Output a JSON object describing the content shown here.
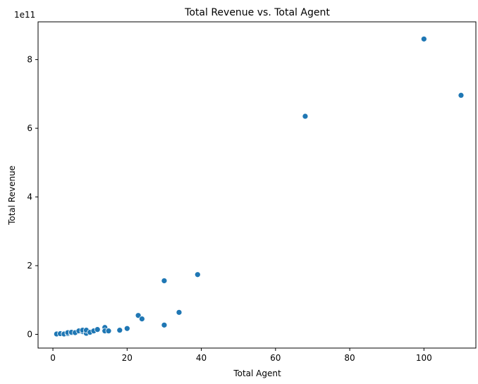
{
  "chart_data": {
    "type": "scatter",
    "title": "Total Revenue vs. Total Agent",
    "xlabel": "Total Agent",
    "ylabel": "Total Revenue",
    "y_offset_label": "1e11",
    "xlim": [
      -4,
      114
    ],
    "ylim": [
      -0.4,
      9.1
    ],
    "y_scale_multiplier": 100000000000.0,
    "x_ticks": [
      0,
      20,
      40,
      60,
      80,
      100
    ],
    "y_ticks": [
      0,
      2,
      4,
      6,
      8
    ],
    "grid": false,
    "color": "#1f77b4",
    "points": [
      {
        "x": 1,
        "y": 0.01
      },
      {
        "x": 2,
        "y": 0.02
      },
      {
        "x": 3,
        "y": 0.02
      },
      {
        "x": 3,
        "y": 0.01
      },
      {
        "x": 4,
        "y": 0.02
      },
      {
        "x": 4,
        "y": 0.05
      },
      {
        "x": 5,
        "y": 0.04
      },
      {
        "x": 5,
        "y": 0.06
      },
      {
        "x": 6,
        "y": 0.05
      },
      {
        "x": 7,
        "y": 0.1
      },
      {
        "x": 8,
        "y": 0.08
      },
      {
        "x": 8,
        "y": 0.12
      },
      {
        "x": 9,
        "y": 0.05
      },
      {
        "x": 9,
        "y": 0.03
      },
      {
        "x": 9,
        "y": 0.12
      },
      {
        "x": 10,
        "y": 0.06
      },
      {
        "x": 11,
        "y": 0.1
      },
      {
        "x": 12,
        "y": 0.14
      },
      {
        "x": 14,
        "y": 0.2
      },
      {
        "x": 14,
        "y": 0.1
      },
      {
        "x": 15,
        "y": 0.1
      },
      {
        "x": 18,
        "y": 0.12
      },
      {
        "x": 20,
        "y": 0.17
      },
      {
        "x": 23,
        "y": 0.55
      },
      {
        "x": 24,
        "y": 0.45
      },
      {
        "x": 30,
        "y": 0.27
      },
      {
        "x": 30,
        "y": 1.56
      },
      {
        "x": 34,
        "y": 0.64
      },
      {
        "x": 39,
        "y": 1.74
      },
      {
        "x": 68,
        "y": 6.35
      },
      {
        "x": 100,
        "y": 8.6
      },
      {
        "x": 110,
        "y": 6.96
      }
    ]
  }
}
